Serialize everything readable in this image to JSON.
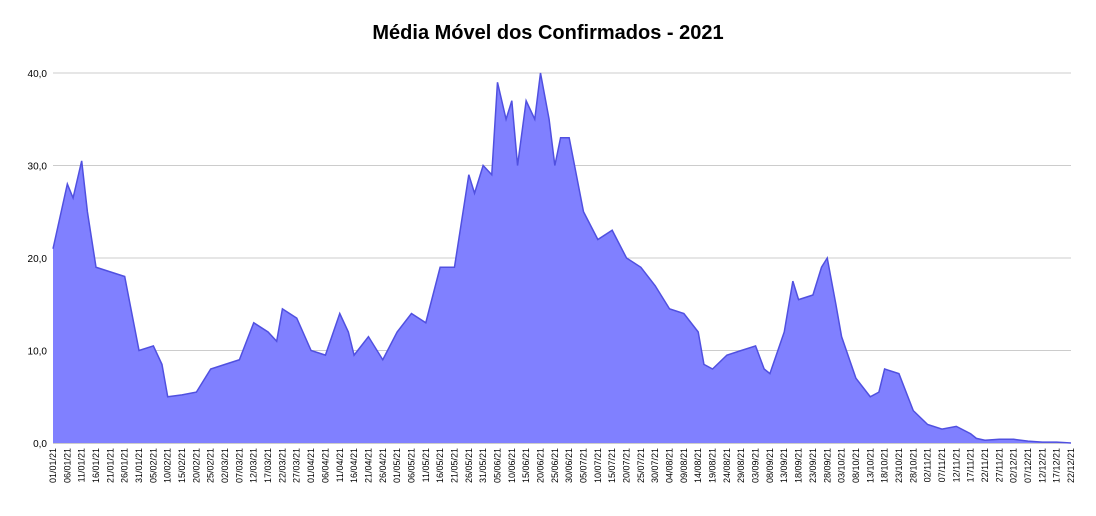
{
  "chart_data": {
    "type": "area",
    "title": "Média Móvel dos Confirmados - 2021",
    "xlabel": "",
    "ylabel": "",
    "ylim": [
      0,
      40
    ],
    "y_ticks": [
      "0,0",
      "10,0",
      "20,0",
      "30,0",
      "40,0"
    ],
    "grid": true,
    "fill_color": "#8080ff",
    "line_color": "#5050e0",
    "x_tick_labels": [
      "01/01/21",
      "06/01/21",
      "11/01/21",
      "16/01/21",
      "21/01/21",
      "26/01/21",
      "31/01/21",
      "05/02/21",
      "10/02/21",
      "15/02/21",
      "20/02/21",
      "25/02/21",
      "02/03/21",
      "07/03/21",
      "12/03/21",
      "17/03/21",
      "22/03/21",
      "27/03/21",
      "01/04/21",
      "06/04/21",
      "11/04/21",
      "16/04/21",
      "21/04/21",
      "26/04/21",
      "01/05/21",
      "06/05/21",
      "11/05/21",
      "16/05/21",
      "21/05/21",
      "26/05/21",
      "31/05/21",
      "05/06/21",
      "10/06/21",
      "15/06/21",
      "20/06/21",
      "25/06/21",
      "30/06/21",
      "05/07/21",
      "10/07/21",
      "15/07/21",
      "20/07/21",
      "25/07/21",
      "30/07/21",
      "04/08/21",
      "09/08/21",
      "14/08/21",
      "19/08/21",
      "24/08/21",
      "29/08/21",
      "03/09/21",
      "08/09/21",
      "13/09/21",
      "18/09/21",
      "23/09/21",
      "28/09/21",
      "03/10/21",
      "08/10/21",
      "13/10/21",
      "18/10/21",
      "23/10/21",
      "28/10/21",
      "02/11/21",
      "07/11/21",
      "12/11/21",
      "17/11/21",
      "22/11/21",
      "27/11/21",
      "02/12/21",
      "07/12/21",
      "12/12/21",
      "17/12/21",
      "22/12/21"
    ],
    "x_points": [
      "01/01/21",
      "06/01/21",
      "08/01/21",
      "11/01/21",
      "13/01/21",
      "16/01/21",
      "21/01/21",
      "26/01/21",
      "31/01/21",
      "05/02/21",
      "08/02/21",
      "10/02/21",
      "15/02/21",
      "20/02/21",
      "25/02/21",
      "02/03/21",
      "07/03/21",
      "12/03/21",
      "17/03/21",
      "20/03/21",
      "22/03/21",
      "27/03/21",
      "01/04/21",
      "06/04/21",
      "11/04/21",
      "14/04/21",
      "16/04/21",
      "21/04/21",
      "26/04/21",
      "01/05/21",
      "06/05/21",
      "11/05/21",
      "16/05/21",
      "21/05/21",
      "26/05/21",
      "28/05/21",
      "31/05/21",
      "03/06/21",
      "05/06/21",
      "08/06/21",
      "10/06/21",
      "12/06/21",
      "15/06/21",
      "18/06/21",
      "20/06/21",
      "23/06/21",
      "25/06/21",
      "27/06/21",
      "30/06/21",
      "05/07/21",
      "10/07/21",
      "15/07/21",
      "20/07/21",
      "25/07/21",
      "30/07/21",
      "04/08/21",
      "09/08/21",
      "14/08/21",
      "16/08/21",
      "19/08/21",
      "24/08/21",
      "29/08/21",
      "03/09/21",
      "06/09/21",
      "08/09/21",
      "13/09/21",
      "16/09/21",
      "18/09/21",
      "23/09/21",
      "26/09/21",
      "28/09/21",
      "01/10/21",
      "03/10/21",
      "08/10/21",
      "13/10/21",
      "16/10/21",
      "18/10/21",
      "23/10/21",
      "28/10/21",
      "02/11/21",
      "07/11/21",
      "12/11/21",
      "17/11/21",
      "19/11/21",
      "22/11/21",
      "27/11/21",
      "02/12/21",
      "07/12/21",
      "12/12/21",
      "17/12/21",
      "22/12/21"
    ],
    "series": [
      {
        "values": [
          21.0,
          28.0,
          26.5,
          30.5,
          25.0,
          19.0,
          18.5,
          18.0,
          10.0,
          10.5,
          8.5,
          5.0,
          5.2,
          5.5,
          8.0,
          8.5,
          9.0,
          13.0,
          12.0,
          11.0,
          14.5,
          13.5,
          10.0,
          9.5,
          14.0,
          12.0,
          9.5,
          11.5,
          9.0,
          12.0,
          14.0,
          13.0,
          19.0,
          19.0,
          29.0,
          27.0,
          30.0,
          29.0,
          39.0,
          35.0,
          37.0,
          30.0,
          37.0,
          35.0,
          40.0,
          35.0,
          30.0,
          33.0,
          33.0,
          25.0,
          22.0,
          23.0,
          20.0,
          19.0,
          17.0,
          14.5,
          14.0,
          12.0,
          8.5,
          8.0,
          9.5,
          10.0,
          10.5,
          8.0,
          7.5,
          12.0,
          17.5,
          15.5,
          16.0,
          19.0,
          20.0,
          15.0,
          11.5,
          7.0,
          5.0,
          5.5,
          8.0,
          7.5,
          3.5,
          2.0,
          1.5,
          1.8,
          1.0,
          0.5,
          0.3,
          0.4,
          0.4,
          0.2,
          0.1,
          0.1,
          0.0
        ]
      }
    ]
  }
}
